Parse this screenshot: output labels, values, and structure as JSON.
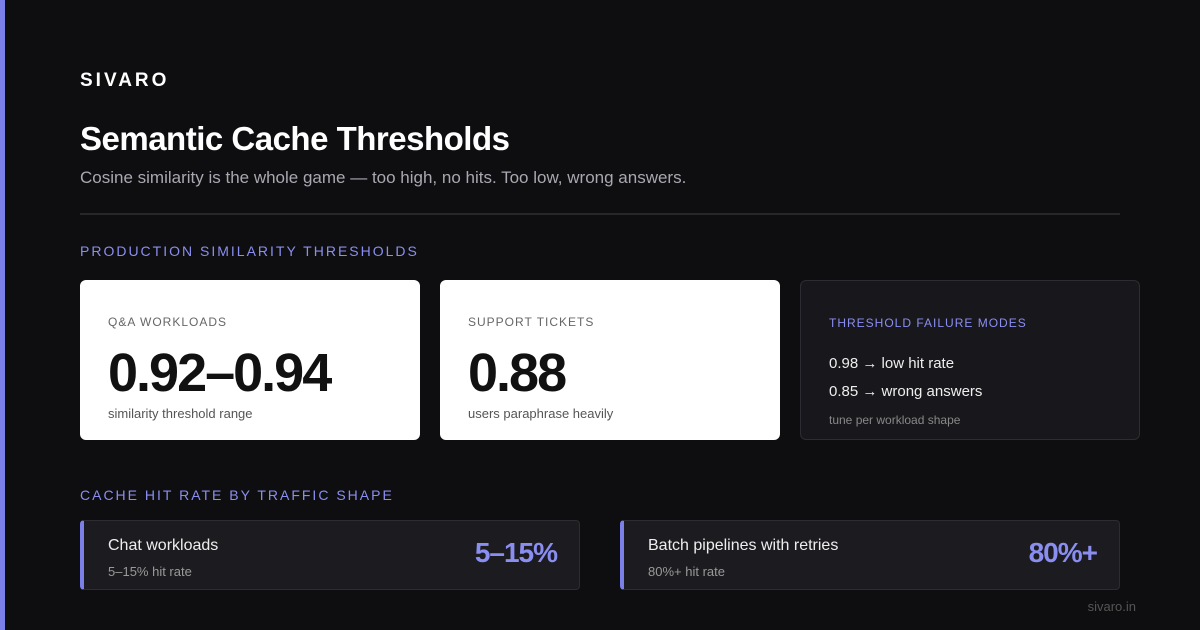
{
  "brand": "SIVARO",
  "title": "Semantic Cache Thresholds",
  "subtitle": "Cosine similarity is the whole game — too high, no hits. Too low, wrong answers.",
  "section1": "PRODUCTION SIMILARITY THRESHOLDS",
  "cards": [
    {
      "label": "Q&A WORKLOADS",
      "value": "0.92–0.94",
      "caption": "similarity threshold range"
    },
    {
      "label": "SUPPORT TICKETS",
      "value": "0.88",
      "caption": "users paraphrase heavily"
    }
  ],
  "failure": {
    "label": "THRESHOLD FAILURE MODES",
    "lines": [
      "0.98 → low hit rate",
      "0.85 → wrong answers"
    ],
    "note": "tune per workload shape"
  },
  "section2": "CACHE HIT RATE BY TRAFFIC SHAPE",
  "hits": [
    {
      "name": "Chat workloads",
      "caption": "5–15% hit rate",
      "value": "5–15%"
    },
    {
      "name": "Batch pipelines with retries",
      "caption": "80%+ hit rate",
      "value": "80%+"
    }
  ],
  "footer": "sivaro.in"
}
